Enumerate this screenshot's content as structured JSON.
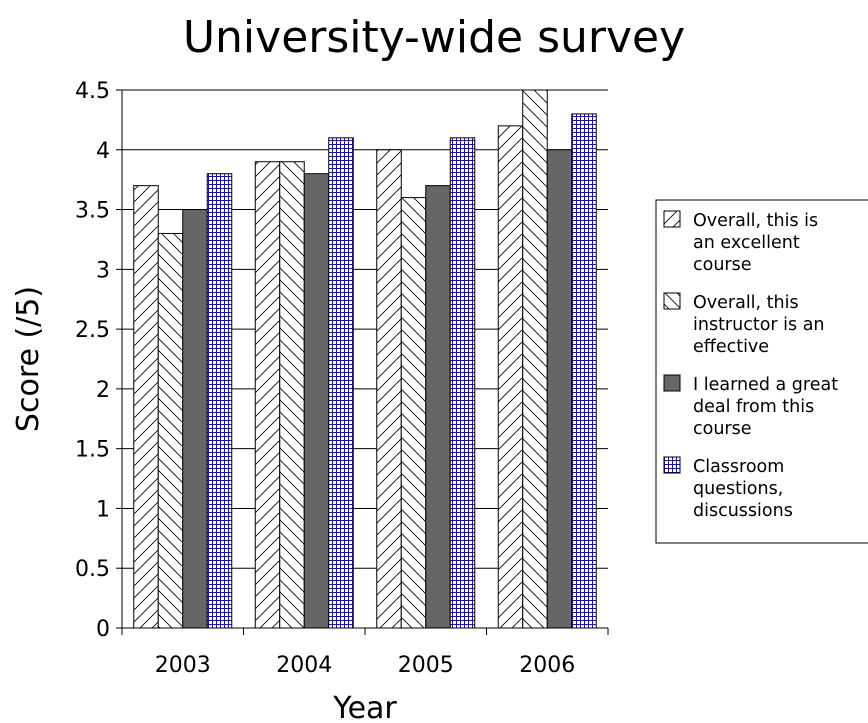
{
  "chart_data": {
    "type": "bar",
    "title": "University-wide survey",
    "xlabel": "Year",
    "ylabel": "Score (/5)",
    "categories": [
      "2003",
      "2004",
      "2005",
      "2006"
    ],
    "ylim": [
      0,
      4.5
    ],
    "yticks": [
      "0",
      "0.5",
      "1",
      "1.5",
      "2",
      "2.5",
      "3",
      "3.5",
      "4",
      "4.5"
    ],
    "grid": "horizontal major",
    "legend_position": "right",
    "series": [
      {
        "name": "Overall, this is an excellent course",
        "legend_lines": [
          "Overall, this is",
          "an excellent",
          "course"
        ],
        "values": [
          3.7,
          3.9,
          4.0,
          4.2
        ],
        "pattern": "forward-diagonal-hatch",
        "color": "#000000"
      },
      {
        "name": "Overall, this instructor is an effective",
        "legend_lines": [
          "Overall, this",
          "instructor is an",
          "effective"
        ],
        "values": [
          3.3,
          3.9,
          3.6,
          4.5
        ],
        "pattern": "backward-diagonal-hatch",
        "color": "#000000"
      },
      {
        "name": "I learned a great deal from this course",
        "legend_lines": [
          "I learned a great",
          "deal from this",
          "course"
        ],
        "values": [
          3.5,
          3.8,
          3.7,
          4.0
        ],
        "pattern": "solid",
        "color": "#666666"
      },
      {
        "name": "Classroom questions, discussions",
        "legend_lines": [
          "Classroom",
          "questions,",
          "discussions"
        ],
        "values": [
          3.8,
          4.1,
          4.1,
          4.3
        ],
        "pattern": "grid-crosshatch",
        "color": "#1a1a8c"
      }
    ]
  }
}
